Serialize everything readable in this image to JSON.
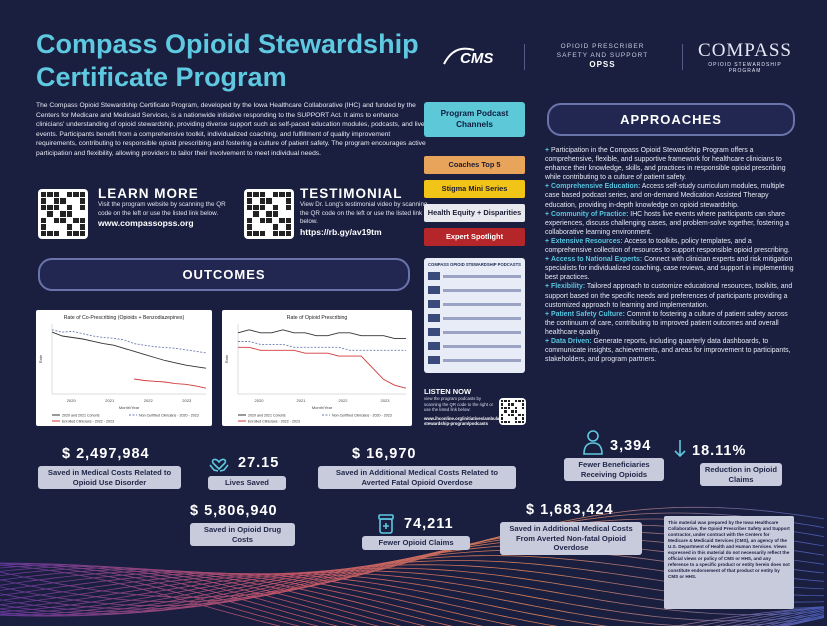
{
  "title": "Compass Opioid Stewardship Certificate Program",
  "logos": {
    "cms": "CMS",
    "opss_line1": "OPIOID PRESCRIBER",
    "opss_line2": "SAFETY AND SUPPORT",
    "opss_abbr": "OPSS",
    "compass_big": "COMPASS",
    "compass_small": "OPIOID STEWARDSHIP PROGRAM"
  },
  "intro": "The Compass Opioid Stewardship Certificate Program, developed by the Iowa Healthcare Collaborative (IHC) and funded by the Centers for Medicare and Medicaid Services, is a nationwide initiative responding to the SUPPORT Act. It aims to enhance clinicians' understanding of opioid stewardship, providing diverse support such as self-paced education modules, podcasts, and live events. Participants benefit from a comprehensive toolkit, individualized coaching, and fulfillment of quality improvement requirements, contributing to responsible opioid prescribing and fostering a culture of patient safety. The program encourages active participation and flexibility, allowing providers to tailor their involvement to meet individual needs.",
  "learn_more": {
    "heading": "LEARN MORE",
    "text": "Visit the program website by scanning the QR code on the left or use the listed link below.",
    "link": "www.compassopss.org"
  },
  "testimonial": {
    "heading": "TESTIMONIAL",
    "text": "View Dr. Long's testimonial video by scanning the QR code on the left or use the listed link below.",
    "link": "https://rb.gy/av19tm"
  },
  "outcomes_heading": "OUTCOMES",
  "approaches_heading": "APPROACHES",
  "podcast": {
    "heading": "Program Podcast Channels",
    "buttons": [
      {
        "label": "Coaches Top 5",
        "bg": "#e8a45a",
        "fg": "#1c1c36"
      },
      {
        "label": "Stigma Mini Series",
        "bg": "#f2c418",
        "fg": "#1c1c36"
      },
      {
        "label": "Health Equity + Disparities",
        "bg": "#e8e9ef",
        "fg": "#1c1c36"
      },
      {
        "label": "Expert Spotlight",
        "bg": "#b5262b",
        "fg": "#ffffff"
      }
    ],
    "screen_title": "COMPASS OPIOID STEWARDSHIP PODCASTS",
    "listen_heading": "LISTEN NOW",
    "listen_text": "view the program podcasts by scanning the QR code to the right or use the listed link below:",
    "listen_link": "www.ihconline.org/initiatives/ambulatory/opioid-stewardship-program/podcasts"
  },
  "approaches": [
    {
      "label": "",
      "text": "Participation in the Compass Opioid Stewardship Program offers a comprehensive, flexible, and supportive framework for healthcare clinicians to enhance their knowledge, skills, and practices in responsible opioid prescribing while contributing to a culture of patient safety."
    },
    {
      "label": "Comprehensive Education:",
      "text": " Access self-study curriculum modules, multiple case based podcast series, and on-demand Medication Assisted Therapy education, providing in-depth knowledge on opioid stewardship."
    },
    {
      "label": "Community of Practice:",
      "text": " IHC hosts live events where participants can share experiences, discuss challenging cases, and problem-solve together, fostering a collaborative learning environment."
    },
    {
      "label": "Extensive Resources:",
      "text": " Access to toolkits, policy templates, and a comprehensive collection of resources to support responsible opioid prescribing."
    },
    {
      "label": "Access to National Experts:",
      "text": " Connect with clinician experts and risk mitigation specialists for individualized coaching, case reviews, and support in implementing best practices."
    },
    {
      "label": "Flexibility:",
      "text": " Tailored approach to customize educational resources, toolkits, and support based on the specific needs and preferences of participants providing a customized approach to learning and implementation."
    },
    {
      "label": "Patient Safety Culture:",
      "text": " Commit to fostering a culture of patient safety across the continuum of care, contributing to improved patient outcomes and overall healthcare quality."
    },
    {
      "label": "Data Driven:",
      "text": " Generate reports, including quarterly data dashboards, to communicate insights, achievements, and areas for improvement to participants, stakeholders, and program partners."
    }
  ],
  "chart_data": [
    {
      "type": "line",
      "title": "Rate of Co-Prescribing (Opioids + Benzodiazepines)",
      "xlabel": "Month/Year",
      "ylabel": "Rate",
      "x": [
        "Jan 2020",
        "Apr 2020",
        "Jul 2020",
        "Oct 2020",
        "Jan 2021",
        "Apr 2021",
        "Jul 2021",
        "Oct 2021",
        "Jan 2022",
        "Apr 2022",
        "Jul 2022",
        "Oct 2022",
        "Jan 2023",
        "Apr 2023",
        "Jul 2023",
        "Oct 2023"
      ],
      "tick_labels": [
        "2020",
        "2021",
        "2022",
        "2023"
      ],
      "series": [
        {
          "name": "2020 and 2021 Cohorts",
          "color": "#333333",
          "dash": "solid",
          "values": [
            0.95,
            0.9,
            0.88,
            0.86,
            0.83,
            0.8,
            0.78,
            0.74,
            0.7,
            0.66,
            0.62,
            0.58,
            0.55,
            0.52,
            0.5,
            0.48
          ]
        },
        {
          "name": "Non Certified Clinicians - 2020 - 2023",
          "color": "#6e7fb0",
          "dash": "dashed",
          "values": [
            0.98,
            0.95,
            0.96,
            0.93,
            0.9,
            0.88,
            0.87,
            0.85,
            0.8,
            0.78,
            0.76,
            0.75,
            0.74,
            0.72,
            0.7,
            0.68
          ]
        },
        {
          "name": "Enrolled Clinicians - 2022 - 2023",
          "color": "#d23a3a",
          "dash": "solid",
          "values": [
            null,
            null,
            null,
            null,
            null,
            null,
            null,
            null,
            0.34,
            0.32,
            0.31,
            0.3,
            0.28,
            0.27,
            0.25,
            0.22
          ]
        }
      ]
    },
    {
      "type": "line",
      "title": "Rate of Opioid Prescribing",
      "xlabel": "Month/Year",
      "ylabel": "Rate",
      "x": [
        "Jan 2020",
        "Apr 2020",
        "Jul 2020",
        "Oct 2020",
        "Jan 2021",
        "Apr 2021",
        "Jul 2021",
        "Oct 2021",
        "Jan 2022",
        "Apr 2022",
        "Jul 2022",
        "Oct 2022",
        "Jan 2023",
        "Apr 2023",
        "Jul 2023",
        "Oct 2023"
      ],
      "tick_labels": [
        "2020",
        "2021",
        "2022",
        "2023"
      ],
      "series": [
        {
          "name": "2020 and 2021 Cohorts",
          "color": "#333333",
          "dash": "solid",
          "values": [
            0.3,
            0.31,
            0.3,
            0.3,
            0.31,
            0.3,
            0.3,
            0.29,
            0.29,
            0.3,
            0.3,
            0.29,
            0.29,
            0.29,
            0.28,
            0.28
          ]
        },
        {
          "name": "Non Certified Clinicians - 2020 - 2023",
          "color": "#6e7fb0",
          "dash": "dashed",
          "values": [
            0.27,
            0.27,
            0.26,
            0.26,
            0.26,
            0.25,
            0.25,
            0.25,
            0.25,
            0.25,
            0.24,
            0.24,
            0.24,
            0.24,
            0.24,
            0.24
          ]
        },
        {
          "name": "Enrolled Clinicians - 2022 - 2023",
          "color": "#d23a3a",
          "dash": "solid",
          "values": [
            0.25,
            0.25,
            0.24,
            0.24,
            0.24,
            0.24,
            0.23,
            0.23,
            0.23,
            0.22,
            0.22,
            0.22,
            0.18,
            0.14,
            0.12,
            0.11
          ]
        }
      ]
    }
  ],
  "stats": [
    {
      "value": "$ 2,497,984",
      "label": "Saved in Medical Costs Related to Opioid Use Disorder"
    },
    {
      "value": "27.15",
      "label": "Lives Saved"
    },
    {
      "value": "$ 16,970",
      "label": "Saved in Additional Medical Costs Related to Averted Fatal Opioid Overdose"
    },
    {
      "value": "3,394",
      "label": "Fewer Beneficiaries Receiving Opioids"
    },
    {
      "value": "18.11%",
      "label": "Reduction in Opioid Claims"
    },
    {
      "value": "$ 5,806,940",
      "label": "Saved in Opioid Drug Costs"
    },
    {
      "value": "74,211",
      "label": "Fewer Opioid Claims"
    },
    {
      "value": "$ 1,683,424",
      "label": "Saved in Additional Medical Costs From Averted Non-fatal Opioid Overdose"
    }
  ],
  "disclaimer": "This material was prepared by the Iowa Healthcare Collaborative, the Opioid Prescriber Safety and Support contractor, under contract with the Centers for Medicare & Medicaid Services (CMS), an agency of the U.S. Department of Health and Human Services. Views expressed in this material do not necessarily reflect the official views or policy of CMS or HHS, and any reference to a specific product or entity herein does not constitute endorsement of that product or entity by CMS or HHS."
}
